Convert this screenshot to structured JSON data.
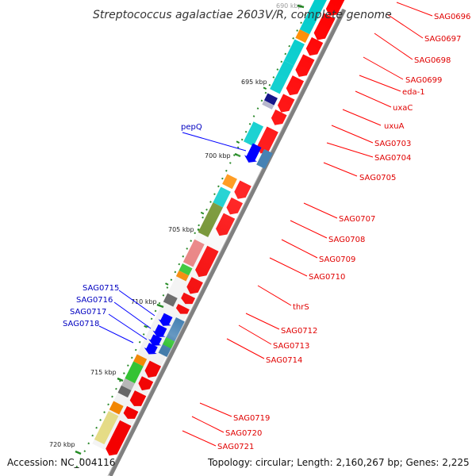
{
  "title": "Streptococcus agalactiae 2603V/R, complete genome",
  "footer": {
    "accession": "Accession: NC_004116",
    "topology": "Topology: circular; Length: 2,160,267 bp; Genes: 2,225"
  },
  "ticks": [
    {
      "label": "690 kbp",
      "faded": true
    },
    {
      "label": "695 kbp"
    },
    {
      "label": "700 kbp"
    },
    {
      "label": "705 kbp"
    },
    {
      "label": "710 kbp"
    },
    {
      "label": "715 kbp"
    },
    {
      "label": "720 kbp"
    }
  ],
  "forward_genes": [
    {
      "label": "SAG0696",
      "color": "#ff0000"
    },
    {
      "label": "SAG0697",
      "color": "#ff0000"
    },
    {
      "label": "SAG0698",
      "color": "#ff0000"
    },
    {
      "label": "SAG0699",
      "color": "#ff0000"
    },
    {
      "label": "eda-1",
      "color": "#ff0000"
    },
    {
      "label": "uxaC",
      "color": "#ff0000"
    },
    {
      "label": "uxuA",
      "color": "#ff0000"
    },
    {
      "label": "SAG0703",
      "color": "#ff0000"
    },
    {
      "label": "SAG0704",
      "color": "#ff0000"
    },
    {
      "label": "SAG0705",
      "color": "#ff0000"
    },
    {
      "label": "SAG0707",
      "color": "#ff0000"
    },
    {
      "label": "SAG0708",
      "color": "#ff0000"
    },
    {
      "label": "SAG0709",
      "color": "#ff0000"
    },
    {
      "label": "SAG0710",
      "color": "#ff0000"
    },
    {
      "label": "thrS",
      "color": "#ff0000"
    },
    {
      "label": "SAG0712",
      "color": "#ff0000"
    },
    {
      "label": "SAG0713",
      "color": "#ff0000"
    },
    {
      "label": "SAG0714",
      "color": "#ff0000"
    },
    {
      "label": "SAG0719",
      "color": "#ff0000"
    },
    {
      "label": "SAG0720",
      "color": "#ff0000"
    },
    {
      "label": "SAG0721",
      "color": "#ff0000"
    }
  ],
  "reverse_genes": [
    {
      "label": "pepQ",
      "color": "#0000ff"
    },
    {
      "label": "SAG0715",
      "color": "#0000ff"
    },
    {
      "label": "SAG0716",
      "color": "#0000ff"
    },
    {
      "label": "SAG0717",
      "color": "#0000ff"
    },
    {
      "label": "SAG0718",
      "color": "#0000ff"
    }
  ],
  "colors": {
    "backbone": "#808080",
    "forward_strand": "#ff0000",
    "reverse_strand": "#0000ff",
    "tick_mark": "#228b22",
    "forward_label": "#e00000",
    "reverse_label": "#0000c0",
    "cog_cyan": "#00cccc",
    "cog_orange": "#ff8c00",
    "cog_green": "#32cd32",
    "cog_olive": "#6b8e23",
    "cog_pink": "#f08080",
    "cog_gray": "#696969",
    "cog_navy": "#000080",
    "cog_steel": "#4682b4",
    "cog_khaki": "#f0e68c"
  }
}
